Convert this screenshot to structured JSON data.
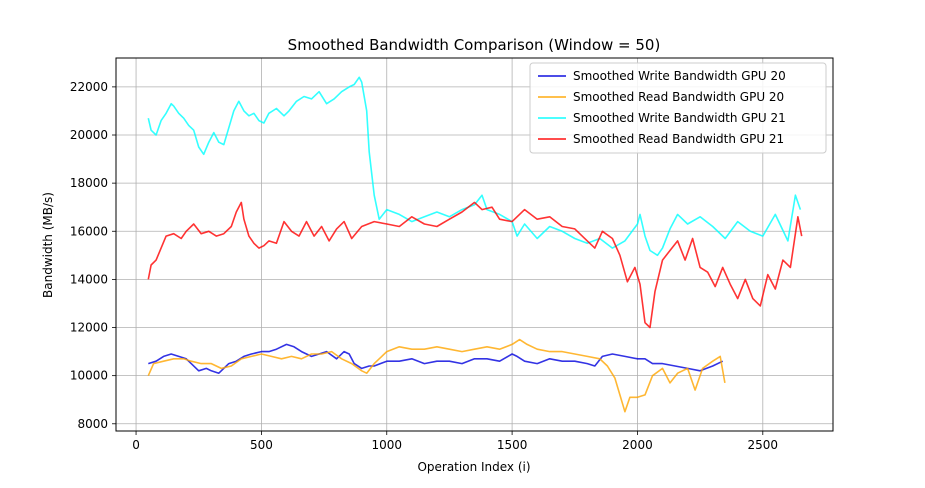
{
  "chart_data": {
    "type": "line",
    "title": "Smoothed Bandwidth Comparison (Window = 50)",
    "xlabel": "Operation Index (i)",
    "ylabel": "Bandwidth (MB/s)",
    "xlim": [
      -80,
      2780
    ],
    "ylim": [
      7700,
      23200
    ],
    "xticks": [
      0,
      500,
      1000,
      1500,
      2000,
      2500
    ],
    "yticks": [
      8000,
      10000,
      12000,
      14000,
      16000,
      18000,
      20000,
      22000
    ],
    "grid": true,
    "legend_position": "top-right",
    "series": [
      {
        "name": "Smoothed Write Bandwidth GPU 20",
        "color": "#0000dd",
        "x": [
          49,
          80,
          110,
          140,
          170,
          200,
          220,
          250,
          280,
          300,
          330,
          370,
          400,
          430,
          460,
          500,
          530,
          560,
          600,
          630,
          660,
          700,
          730,
          760,
          800,
          830,
          850,
          870,
          900,
          930,
          950,
          1000,
          1050,
          1100,
          1150,
          1200,
          1250,
          1300,
          1350,
          1400,
          1450,
          1500,
          1520,
          1550,
          1600,
          1650,
          1700,
          1750,
          1800,
          1830,
          1860,
          1900,
          1950,
          2000,
          2030,
          2060,
          2100,
          2150,
          2200,
          2250,
          2300,
          2340
        ],
        "y": [
          10500,
          10600,
          10800,
          10900,
          10800,
          10700,
          10500,
          10200,
          10300,
          10200,
          10100,
          10500,
          10600,
          10800,
          10900,
          11000,
          11000,
          11100,
          11300,
          11200,
          11000,
          10800,
          10900,
          11000,
          10700,
          11000,
          10900,
          10500,
          10300,
          10400,
          10400,
          10600,
          10600,
          10700,
          10500,
          10600,
          10600,
          10500,
          10700,
          10700,
          10600,
          10900,
          10800,
          10600,
          10500,
          10700,
          10600,
          10600,
          10500,
          10400,
          10800,
          10900,
          10800,
          10700,
          10700,
          10500,
          10500,
          10400,
          10300,
          10200,
          10400,
          10600
        ]
      },
      {
        "name": "Smoothed Read Bandwidth GPU 20",
        "color": "#ffa500",
        "x": [
          49,
          70,
          110,
          150,
          190,
          220,
          260,
          300,
          340,
          380,
          420,
          460,
          500,
          540,
          580,
          620,
          660,
          700,
          740,
          780,
          820,
          860,
          900,
          920,
          950,
          1000,
          1050,
          1100,
          1150,
          1200,
          1250,
          1300,
          1350,
          1400,
          1450,
          1500,
          1530,
          1560,
          1600,
          1650,
          1700,
          1750,
          1800,
          1850,
          1880,
          1910,
          1930,
          1950,
          1970,
          2000,
          2030,
          2060,
          2100,
          2130,
          2160,
          2200,
          2230,
          2260,
          2300,
          2330,
          2349
        ],
        "y": [
          10000,
          10500,
          10600,
          10700,
          10700,
          10600,
          10500,
          10500,
          10300,
          10400,
          10700,
          10800,
          10900,
          10800,
          10700,
          10800,
          10700,
          10900,
          10900,
          11000,
          10700,
          10500,
          10200,
          10100,
          10500,
          11000,
          11200,
          11100,
          11100,
          11200,
          11100,
          11000,
          11100,
          11200,
          11100,
          11300,
          11500,
          11300,
          11100,
          11000,
          11000,
          10900,
          10800,
          10700,
          10400,
          9900,
          9200,
          8500,
          9100,
          9100,
          9200,
          10000,
          10300,
          9700,
          10100,
          10300,
          9400,
          10300,
          10600,
          10800,
          9700
        ]
      },
      {
        "name": "Smoothed Write Bandwidth GPU 21",
        "color": "#00ffff",
        "x": [
          49,
          60,
          80,
          100,
          120,
          140,
          150,
          170,
          190,
          210,
          230,
          250,
          270,
          290,
          310,
          330,
          350,
          370,
          390,
          410,
          430,
          450,
          470,
          490,
          510,
          530,
          560,
          590,
          610,
          640,
          670,
          700,
          730,
          760,
          790,
          820,
          850,
          870,
          890,
          900,
          920,
          930,
          950,
          970,
          1000,
          1050,
          1100,
          1150,
          1200,
          1250,
          1300,
          1350,
          1380,
          1400,
          1450,
          1500,
          1520,
          1550,
          1600,
          1650,
          1700,
          1750,
          1800,
          1850,
          1900,
          1950,
          2000,
          2010,
          2030,
          2050,
          2080,
          2100,
          2130,
          2160,
          2200,
          2250,
          2300,
          2350,
          2400,
          2450,
          2500,
          2550,
          2600,
          2630,
          2650
        ],
        "y": [
          20700,
          20200,
          20000,
          20600,
          20900,
          21300,
          21200,
          20900,
          20700,
          20400,
          20200,
          19500,
          19200,
          19700,
          20100,
          19700,
          19600,
          20300,
          21000,
          21400,
          21000,
          20800,
          20900,
          20600,
          20500,
          20900,
          21100,
          20800,
          21000,
          21400,
          21600,
          21500,
          21800,
          21300,
          21500,
          21800,
          22000,
          22100,
          22400,
          22200,
          21000,
          19300,
          17500,
          16500,
          16900,
          16700,
          16400,
          16600,
          16800,
          16600,
          16900,
          17100,
          17500,
          16900,
          16700,
          16400,
          15800,
          16300,
          15700,
          16200,
          16000,
          15700,
          15500,
          15700,
          15300,
          15600,
          16300,
          16700,
          15800,
          15200,
          15000,
          15300,
          16100,
          16700,
          16300,
          16600,
          16200,
          15700,
          16400,
          16000,
          15800,
          16700,
          15600,
          17500,
          16900
        ]
      },
      {
        "name": "Smoothed Read Bandwidth GPU 21",
        "color": "#ff0000",
        "x": [
          49,
          60,
          80,
          100,
          120,
          150,
          180,
          200,
          230,
          260,
          290,
          320,
          350,
          380,
          400,
          420,
          430,
          450,
          470,
          490,
          510,
          530,
          560,
          590,
          620,
          650,
          680,
          710,
          740,
          770,
          800,
          830,
          860,
          900,
          950,
          1000,
          1050,
          1100,
          1150,
          1200,
          1250,
          1300,
          1350,
          1380,
          1420,
          1450,
          1500,
          1550,
          1600,
          1650,
          1700,
          1750,
          1800,
          1830,
          1860,
          1900,
          1930,
          1960,
          1990,
          2010,
          2030,
          2050,
          2070,
          2100,
          2130,
          2160,
          2190,
          2220,
          2250,
          2280,
          2310,
          2340,
          2370,
          2400,
          2430,
          2460,
          2490,
          2520,
          2550,
          2580,
          2610,
          2640,
          2655
        ],
        "y": [
          14000,
          14600,
          14800,
          15300,
          15800,
          15900,
          15700,
          16000,
          16300,
          15900,
          16000,
          15800,
          15900,
          16200,
          16800,
          17200,
          16500,
          15800,
          15500,
          15300,
          15400,
          15600,
          15500,
          16400,
          16000,
          15800,
          16400,
          15800,
          16200,
          15600,
          16100,
          16400,
          15700,
          16200,
          16400,
          16300,
          16200,
          16600,
          16300,
          16200,
          16500,
          16800,
          17200,
          16900,
          17000,
          16500,
          16400,
          16900,
          16500,
          16600,
          16200,
          16100,
          15600,
          15300,
          16000,
          15700,
          15000,
          13900,
          14500,
          13800,
          12200,
          12000,
          13500,
          14800,
          15200,
          15600,
          14800,
          15700,
          14500,
          14300,
          13700,
          14500,
          13800,
          13200,
          14000,
          13200,
          12900,
          14200,
          13600,
          14800,
          14500,
          16600,
          15800
        ]
      }
    ]
  }
}
